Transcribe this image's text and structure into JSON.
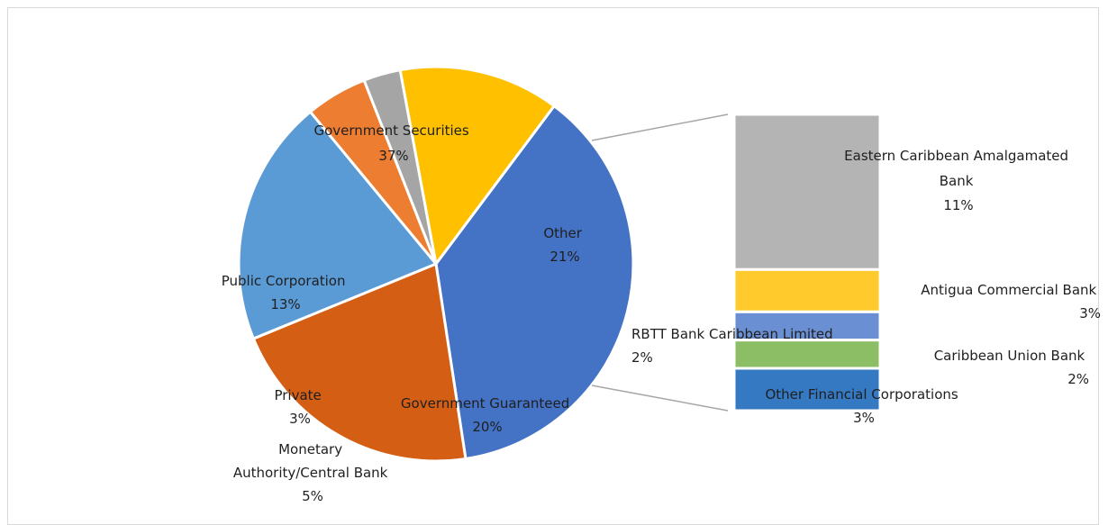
{
  "chart_data": {
    "type": "pie",
    "subtype": "bar-of-pie",
    "title": "",
    "slices": [
      {
        "label": "Government Securities",
        "value": 37,
        "pct_label": "37%",
        "color": "#4472C4"
      },
      {
        "label": "Other",
        "value": 21,
        "pct_label": "21%",
        "color": "#D45F14"
      },
      {
        "label": "Government Guaranteed",
        "value": 20,
        "pct_label": "20%",
        "color": "#5B9BD5"
      },
      {
        "label": "Monetary Authority/Central Bank",
        "value": 5,
        "pct_label": "5%",
        "color": "#ED7D31"
      },
      {
        "label": "Private",
        "value": 3,
        "pct_label": "3%",
        "color": "#A5A5A5"
      },
      {
        "label": "Public Corporation",
        "value": 13,
        "pct_label": "13%",
        "color": "#FFC000"
      }
    ],
    "breakdown": {
      "of": "Other",
      "segments": [
        {
          "label": "Eastern Caribbean Amalgamated Bank",
          "value": 11,
          "pct_label": "11%",
          "color": "#B4B4B4"
        },
        {
          "label": "Antigua Commercial Bank",
          "value": 3,
          "pct_label": "3%",
          "color": "#FFCA2C"
        },
        {
          "label": "RBTT Bank Caribbean Limited",
          "value": 2,
          "pct_label": "2%",
          "color": "#6A8FD3"
        },
        {
          "label": "Caribbean Union Bank",
          "value": 2,
          "pct_label": "2%",
          "color": "#8CBE66"
        },
        {
          "label": "Other Financial Corporations",
          "value": 3,
          "pct_label": "3%",
          "color": "#3479C2"
        }
      ]
    }
  }
}
